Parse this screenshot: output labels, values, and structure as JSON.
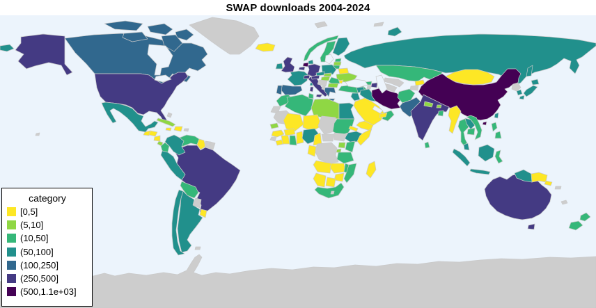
{
  "title": "SWAP downloads 2004-2024",
  "legend": {
    "title": "category",
    "items": [
      {
        "label": "[0,5]",
        "color": "#FDE725"
      },
      {
        "label": "(5,10]",
        "color": "#8FD744"
      },
      {
        "label": "(10,50]",
        "color": "#35B779"
      },
      {
        "label": "(50,100]",
        "color": "#21908C"
      },
      {
        "label": "(100,250]",
        "color": "#31688E"
      },
      {
        "label": "(250,500]",
        "color": "#443A83"
      },
      {
        "label": "(500,1.1e+03]",
        "color": "#440154"
      }
    ]
  },
  "map": {
    "ocean_color": "#ECF4FC",
    "no_data_color": "#CDCDCD",
    "border_color": "#C9C9C9",
    "countries": {
      "greenland": "NA",
      "canada": 4,
      "usa": 5,
      "mexico": 3,
      "guatemala": 0,
      "honduras": 0,
      "nicaragua": 0,
      "costa-rica": 1,
      "panama": 1,
      "cuba": 1,
      "jamaica": 0,
      "hispaniola": 0,
      "puerto-rico": "NA",
      "bahamas": "NA",
      "hawaii": "NA",
      "colombia": 3,
      "venezuela": 2,
      "guyana": 0,
      "suriname": "NA",
      "french-guiana": "NA",
      "ecuador": 2,
      "peru": 3,
      "brazil": 5,
      "bolivia": 2,
      "paraguay": "NA",
      "uruguay": 0,
      "argentina": 3,
      "chile": 3,
      "falkland-islands": "NA",
      "iceland": 0,
      "uk": 5,
      "ireland": 3,
      "norway": 2,
      "sweden": 2,
      "finland": 3,
      "denmark": 3,
      "estonia": 2,
      "latvia": 1,
      "lithuania": 2,
      "belarus": 0,
      "poland": 3,
      "germany": 5,
      "netherlands": 6,
      "belgium": 5,
      "france": 3,
      "spain": 4,
      "portugal": 4,
      "italy": 5,
      "switzerland": 5,
      "austria": 5,
      "czechia": 3,
      "slovakia": 1,
      "hungary": 1,
      "ukraine": 1,
      "moldova": 0,
      "romania": 2,
      "balkans": "NA",
      "albania": "NA",
      "bulgaria": 1,
      "greece": 4,
      "cyprus": 1,
      "russia": 3,
      "svalbard": "NA",
      "franz-josef": "NA",
      "kazakhstan": 2,
      "uzbekistan": "NA",
      "turkmenistan": "NA",
      "kyrgyzstan": 0,
      "tajikistan": "NA",
      "afghanistan": 2,
      "pakistan": 4,
      "india": 5,
      "nepal": 1,
      "bhutan": 1,
      "bangladesh": 2,
      "sri-lanka": 2,
      "myanmar": 0,
      "thailand": 2,
      "laos": 3,
      "cambodia": 2,
      "vietnam": 2,
      "malaysia": 3,
      "indonesia": 3,
      "indonesia-sulawesi": 2,
      "philippines": 2,
      "taiwan": 3,
      "china": 6,
      "mongolia": 0,
      "north-korea": "NA",
      "south-korea": 3,
      "japan": 3,
      "turkey": 2,
      "georgia": 2,
      "azerbaijan": 5,
      "armenia": "NA",
      "syria": 3,
      "iraq": 3,
      "levant": 3,
      "saudi-arabia": 0,
      "yemen": 0,
      "oman": 2,
      "uae": 0,
      "iran": 6,
      "morocco": 2,
      "western-sahara": "NA",
      "algeria": 2,
      "tunisia": 2,
      "libya": 1,
      "egypt": 3,
      "mauritania": "NA",
      "mali": 0,
      "niger": 0,
      "chad": "NA",
      "sudan": 2,
      "eritrea": 0,
      "ethiopia": 3,
      "somalia": 0,
      "senegal": 1,
      "guinea": 0,
      "sierra-leone": "NA",
      "liberia": 0,
      "ivory-coast": 0,
      "burkina-faso": 0,
      "ghana": 2,
      "togo-benin": 0,
      "nigeria": 3,
      "cameroon": 0,
      "central-african-republic": "NA",
      "south-sudan": "NA",
      "uganda": 1,
      "kenya": 2,
      "rwanda-burundi": 1,
      "drc": "NA",
      "congo-gabon": 0,
      "tanzania": 2,
      "angola": 0,
      "zambia": 0,
      "malawi": 2,
      "mozambique": 2,
      "zimbabwe": 0,
      "botswana": 0,
      "namibia": 0,
      "south-africa": 2,
      "lesotho": "NA",
      "madagascar": 0,
      "australia": 5,
      "new-zealand": 2,
      "papua-new-guinea": 0,
      "solomon-islands": "NA",
      "new-caledonia": "NA",
      "antarctica": "NA"
    }
  }
}
